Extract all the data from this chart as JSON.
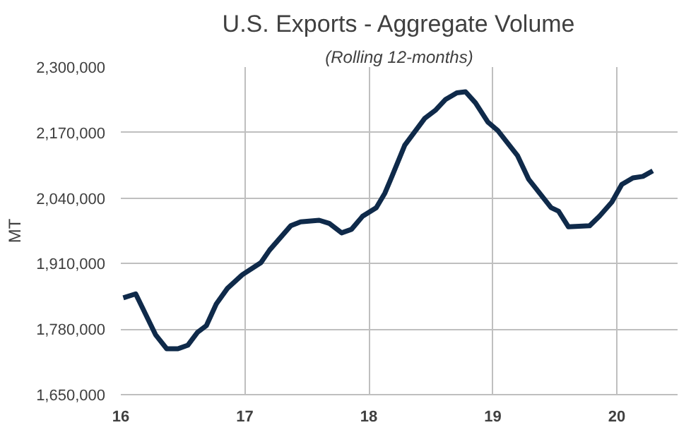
{
  "chart_data": {
    "type": "line",
    "title": "U.S. Exports - Aggregate Volume",
    "subtitle": "(Rolling 12-months)",
    "ylabel": "MT",
    "x": [
      16.02,
      16.12,
      16.28,
      16.37,
      16.46,
      16.54,
      16.62,
      16.69,
      16.77,
      16.86,
      16.98,
      17.13,
      17.2,
      17.37,
      17.45,
      17.6,
      17.68,
      17.78,
      17.86,
      17.95,
      18.06,
      18.13,
      18.19,
      18.29,
      18.45,
      18.54,
      18.62,
      18.71,
      18.78,
      18.86,
      18.96,
      19.04,
      19.2,
      19.29,
      19.47,
      19.53,
      19.61,
      19.78,
      19.86,
      19.96,
      20.04,
      20.13,
      20.21,
      20.29
    ],
    "series": [
      {
        "color": "#0f2a4a",
        "values": [
          1842000,
          1850000,
          1769000,
          1741000,
          1741000,
          1748000,
          1774000,
          1787000,
          1830000,
          1861000,
          1888000,
          1912000,
          1937000,
          1985000,
          1993000,
          1996000,
          1990000,
          1971000,
          1978000,
          2004000,
          2021000,
          2050000,
          2085000,
          2145000,
          2198000,
          2215000,
          2236000,
          2249000,
          2251000,
          2229000,
          2191000,
          2174000,
          2124000,
          2077000,
          2021000,
          2014000,
          1983000,
          1985000,
          2004000,
          2032000,
          2067000,
          2080000,
          2083000,
          2094000
        ]
      }
    ],
    "xlim": [
      16,
      20.49
    ],
    "xticks": [
      16,
      17,
      18,
      19,
      20
    ],
    "ylim": [
      1650000,
      2300000
    ],
    "yticks": [
      {
        "value": 1650000,
        "label": "1,650,000"
      },
      {
        "value": 1780000,
        "label": "1,780,000"
      },
      {
        "value": 1910000,
        "label": "1,910,000"
      },
      {
        "value": 2040000,
        "label": "2,040,000"
      },
      {
        "value": 2170000,
        "label": "2,170,000"
      },
      {
        "value": 2300000,
        "label": "2,300,000"
      }
    ],
    "grid": true,
    "marker": "none",
    "line_style": "solid"
  }
}
